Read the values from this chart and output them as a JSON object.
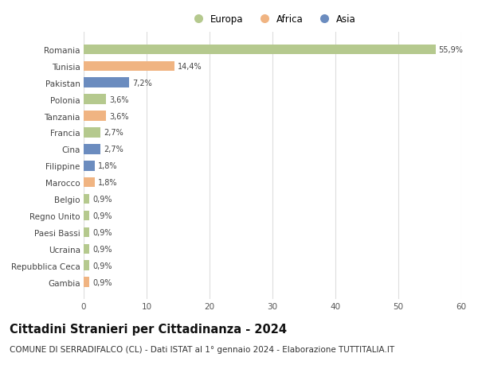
{
  "categories": [
    "Romania",
    "Tunisia",
    "Pakistan",
    "Polonia",
    "Tanzania",
    "Francia",
    "Cina",
    "Filippine",
    "Marocco",
    "Belgio",
    "Regno Unito",
    "Paesi Bassi",
    "Ucraina",
    "Repubblica Ceca",
    "Gambia"
  ],
  "values": [
    55.9,
    14.4,
    7.2,
    3.6,
    3.6,
    2.7,
    2.7,
    1.8,
    1.8,
    0.9,
    0.9,
    0.9,
    0.9,
    0.9,
    0.9
  ],
  "labels": [
    "55,9%",
    "14,4%",
    "7,2%",
    "3,6%",
    "3,6%",
    "2,7%",
    "2,7%",
    "1,8%",
    "1,8%",
    "0,9%",
    "0,9%",
    "0,9%",
    "0,9%",
    "0,9%",
    "0,9%"
  ],
  "continents": [
    "Europa",
    "Africa",
    "Asia",
    "Europa",
    "Africa",
    "Europa",
    "Asia",
    "Asia",
    "Africa",
    "Europa",
    "Europa",
    "Europa",
    "Europa",
    "Europa",
    "Africa"
  ],
  "colors": {
    "Europa": "#b5c98e",
    "Africa": "#f0b482",
    "Asia": "#6b8cbf"
  },
  "xlim": [
    0,
    60
  ],
  "xticks": [
    0,
    10,
    20,
    30,
    40,
    50,
    60
  ],
  "title": "Cittadini Stranieri per Cittadinanza - 2024",
  "subtitle": "COMUNE DI SERRADIFALCO (CL) - Dati ISTAT al 1° gennaio 2024 - Elaborazione TUTTITALIA.IT",
  "title_fontsize": 10.5,
  "subtitle_fontsize": 7.5,
  "bg_color": "#ffffff",
  "grid_color": "#dddddd"
}
